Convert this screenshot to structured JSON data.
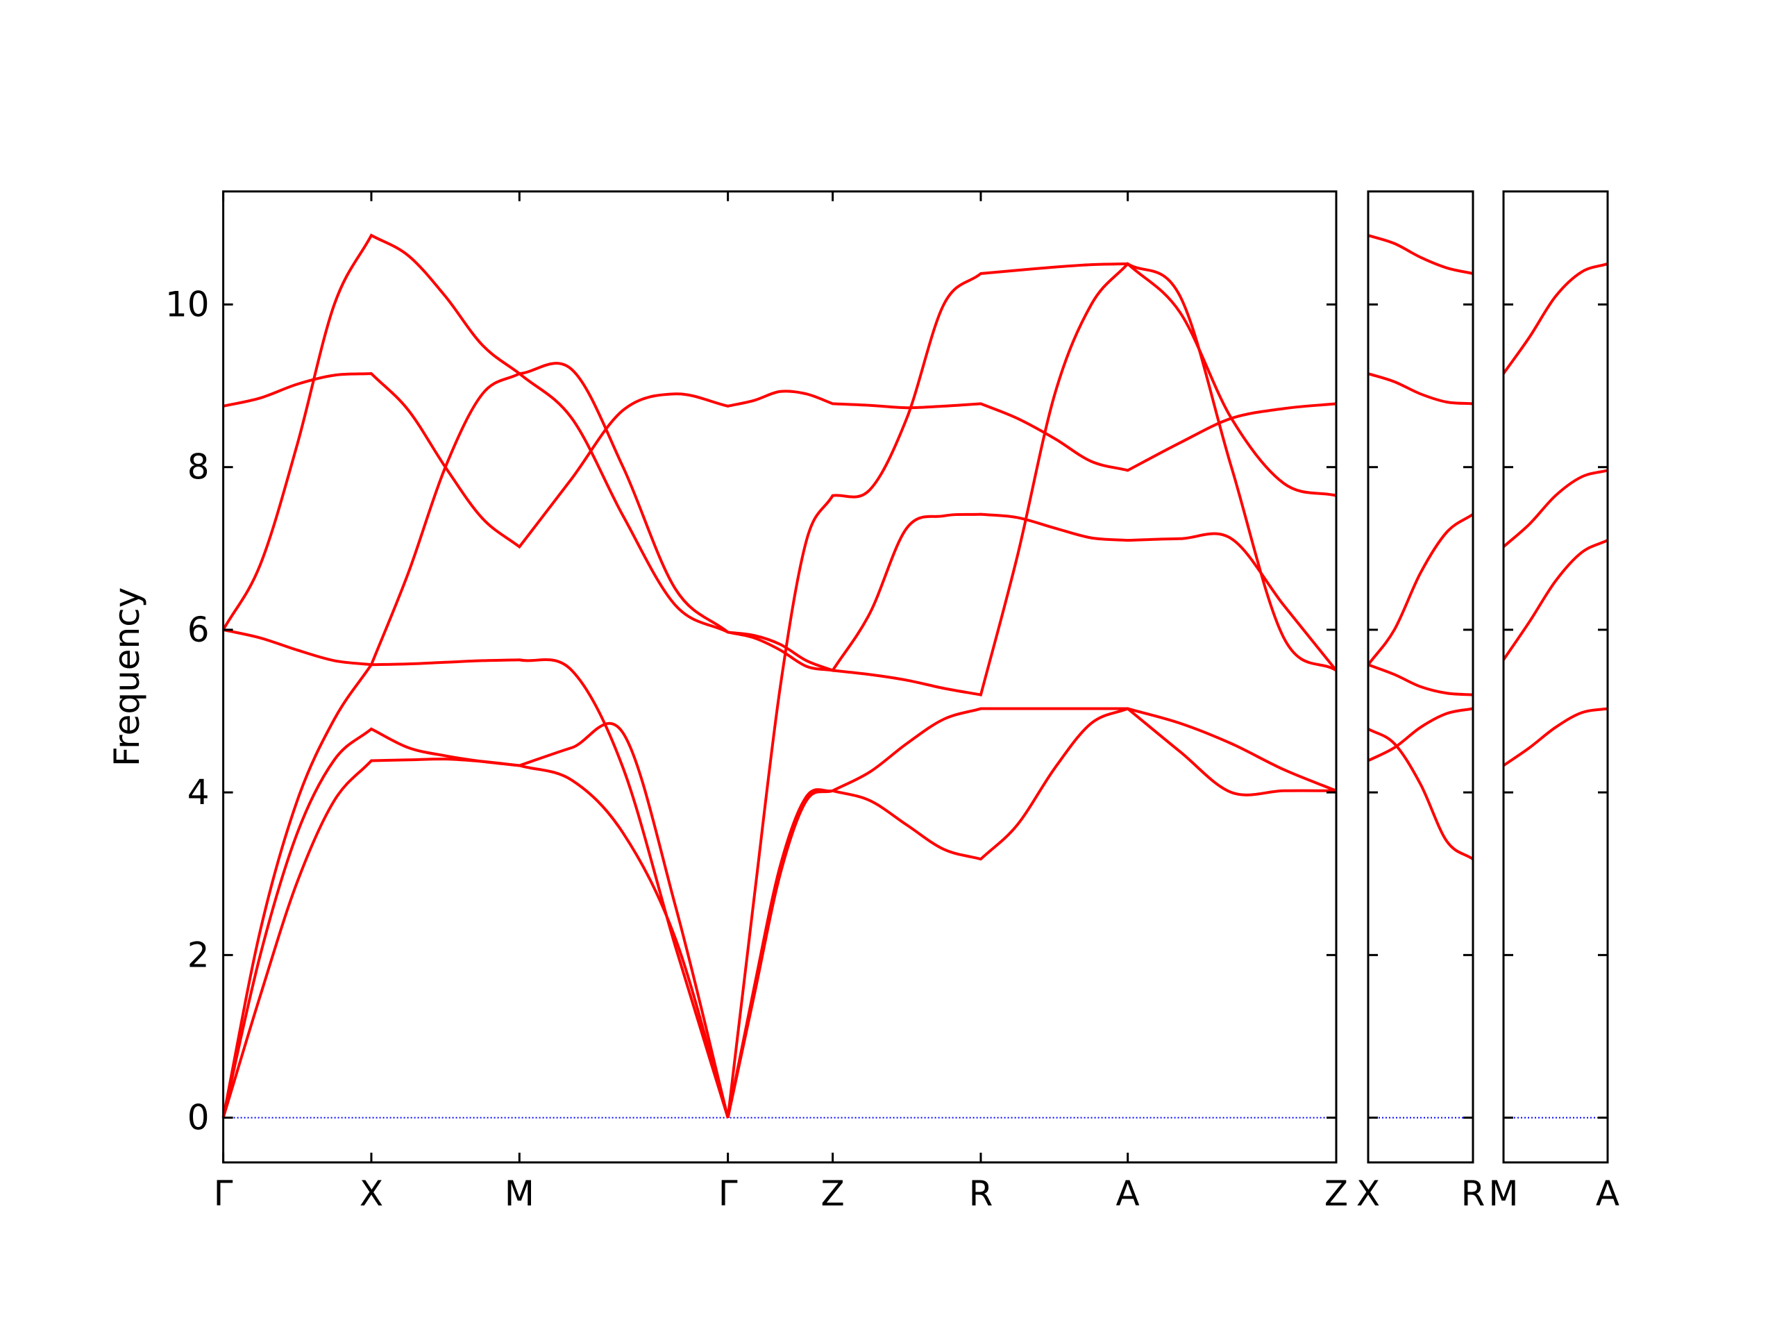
{
  "chart_data": [
    {
      "type": "line",
      "ylabel": "Frequency",
      "color": "#ff0000",
      "line_width": 4,
      "reference_line": {
        "value": 0,
        "color": "#0000ff"
      },
      "ytick_labels": true,
      "x": [
        0,
        0.325,
        0.65,
        0.975,
        1.3,
        1.625,
        1.95,
        2.275,
        2.6,
        3.06,
        3.51,
        3.97,
        4.43,
        4.66,
        4.89,
        5.12,
        5.35,
        5.675,
        6.0,
        6.325,
        6.65,
        6.97,
        7.3,
        7.62,
        7.94,
        8.4,
        8.85,
        9.31,
        9.77
      ],
      "xlim": [
        0,
        9.77
      ],
      "xticks": [
        {
          "value": 0,
          "label": "Γ"
        },
        {
          "value": 1.3,
          "label": "X"
        },
        {
          "value": 2.6,
          "label": "M"
        },
        {
          "value": 4.43,
          "label": "Γ"
        },
        {
          "value": 5.35,
          "label": "Z"
        },
        {
          "value": 6.65,
          "label": "R"
        },
        {
          "value": 7.94,
          "label": "A"
        },
        {
          "value": 9.77,
          "label": "Z"
        }
      ],
      "ylim": [
        -0.55,
        11.39
      ],
      "yticks": [
        0,
        2,
        4,
        6,
        8,
        10
      ],
      "series": [
        {
          "values": [
            8.75,
            8.85,
            9.02,
            9.13,
            9.15,
            8.7,
            8.0,
            7.37,
            7.02,
            7.86,
            8.7,
            8.9,
            8.75,
            8.82,
            8.93,
            8.9,
            8.78,
            8.76,
            8.73,
            8.75,
            8.78,
            8.6,
            8.35,
            8.07,
            7.96,
            8.3,
            8.6,
            8.72,
            8.78
          ]
        },
        {
          "values": [
            6.0,
            6.8,
            8.28,
            10.0,
            10.85,
            10.6,
            10.1,
            9.5,
            9.15,
            8.6,
            7.4,
            6.3,
            5.97,
            5.93,
            5.82,
            5.62,
            5.5,
            6.2,
            7.25,
            7.4,
            7.42,
            7.38,
            7.25,
            7.13,
            7.1,
            7.12,
            7.12,
            6.3,
            5.5
          ]
        },
        {
          "values": [
            6.0,
            5.9,
            5.75,
            5.62,
            5.57,
            5.58,
            5.6,
            5.62,
            5.63,
            5.5,
            4.3,
            2.1,
            0,
            2.7,
            5.3,
            7.1,
            7.65,
            7.72,
            8.6,
            10.0,
            10.38,
            10.42,
            10.46,
            10.49,
            10.5,
            9.9,
            8.6,
            7.8,
            7.65
          ]
        },
        {
          "values": [
            0,
            2.3,
            3.9,
            4.9,
            5.57,
            6.7,
            8.0,
            8.9,
            9.15,
            9.2,
            8.0,
            6.5,
            5.97,
            5.9,
            5.75,
            5.55,
            5.5,
            5.45,
            5.38,
            5.28,
            5.2,
            6.9,
            8.9,
            10.0,
            10.5,
            10.1,
            8.0,
            5.9,
            5.5
          ]
        },
        {
          "values": [
            0,
            2.0,
            3.5,
            4.4,
            4.78,
            4.55,
            4.45,
            4.38,
            4.33,
            4.55,
            4.73,
            2.6,
            0,
            1.6,
            3.1,
            3.95,
            4.02,
            4.25,
            4.6,
            4.9,
            5.03,
            5.03,
            5.03,
            5.03,
            5.03,
            4.85,
            4.6,
            4.28,
            4.02
          ]
        },
        {
          "values": [
            0,
            1.5,
            2.9,
            3.9,
            4.39,
            4.4,
            4.41,
            4.38,
            4.33,
            4.15,
            3.5,
            2.2,
            0,
            1.5,
            3.0,
            3.9,
            4.02,
            3.9,
            3.6,
            3.3,
            3.18,
            3.6,
            4.3,
            4.85,
            5.03,
            4.5,
            4.0,
            4.02,
            4.02
          ]
        }
      ]
    },
    {
      "type": "line",
      "color": "#ff0000",
      "line_width": 4,
      "reference_line": {
        "value": 0,
        "color": "#0000ff"
      },
      "ytick_labels": false,
      "x": [
        0,
        0.23,
        0.46,
        0.69,
        0.92
      ],
      "xlim": [
        0,
        0.92
      ],
      "xticks": [
        {
          "value": 0,
          "label": "X"
        },
        {
          "value": 0.92,
          "label": "R"
        }
      ],
      "ylim": [
        -0.55,
        11.39
      ],
      "yticks": [
        0,
        2,
        4,
        6,
        8,
        10
      ],
      "series": [
        {
          "values": [
            10.85,
            10.75,
            10.58,
            10.45,
            10.38
          ]
        },
        {
          "values": [
            9.15,
            9.05,
            8.9,
            8.8,
            8.78
          ]
        },
        {
          "values": [
            5.57,
            6.0,
            6.7,
            7.2,
            7.42
          ]
        },
        {
          "values": [
            5.57,
            5.45,
            5.3,
            5.22,
            5.2
          ]
        },
        {
          "values": [
            4.78,
            4.6,
            4.1,
            3.4,
            3.18
          ]
        },
        {
          "values": [
            4.39,
            4.55,
            4.8,
            4.97,
            5.03
          ]
        }
      ]
    },
    {
      "type": "line",
      "color": "#ff0000",
      "line_width": 4,
      "reference_line": {
        "value": 0,
        "color": "#0000ff"
      },
      "ytick_labels": false,
      "x": [
        0,
        0.2275,
        0.455,
        0.6825,
        0.91
      ],
      "xlim": [
        0,
        0.91
      ],
      "xticks": [
        {
          "value": 0,
          "label": "M"
        },
        {
          "value": 0.91,
          "label": "A"
        }
      ],
      "ylim": [
        -0.55,
        11.39
      ],
      "yticks": [
        0,
        2,
        4,
        6,
        8,
        10
      ],
      "series": [
        {
          "values": [
            9.15,
            9.6,
            10.1,
            10.4,
            10.5
          ]
        },
        {
          "values": [
            7.02,
            7.3,
            7.65,
            7.88,
            7.96
          ]
        },
        {
          "values": [
            5.63,
            6.1,
            6.6,
            6.95,
            7.1
          ]
        },
        {
          "values": [
            4.33,
            4.55,
            4.8,
            4.98,
            5.03
          ]
        }
      ]
    }
  ]
}
